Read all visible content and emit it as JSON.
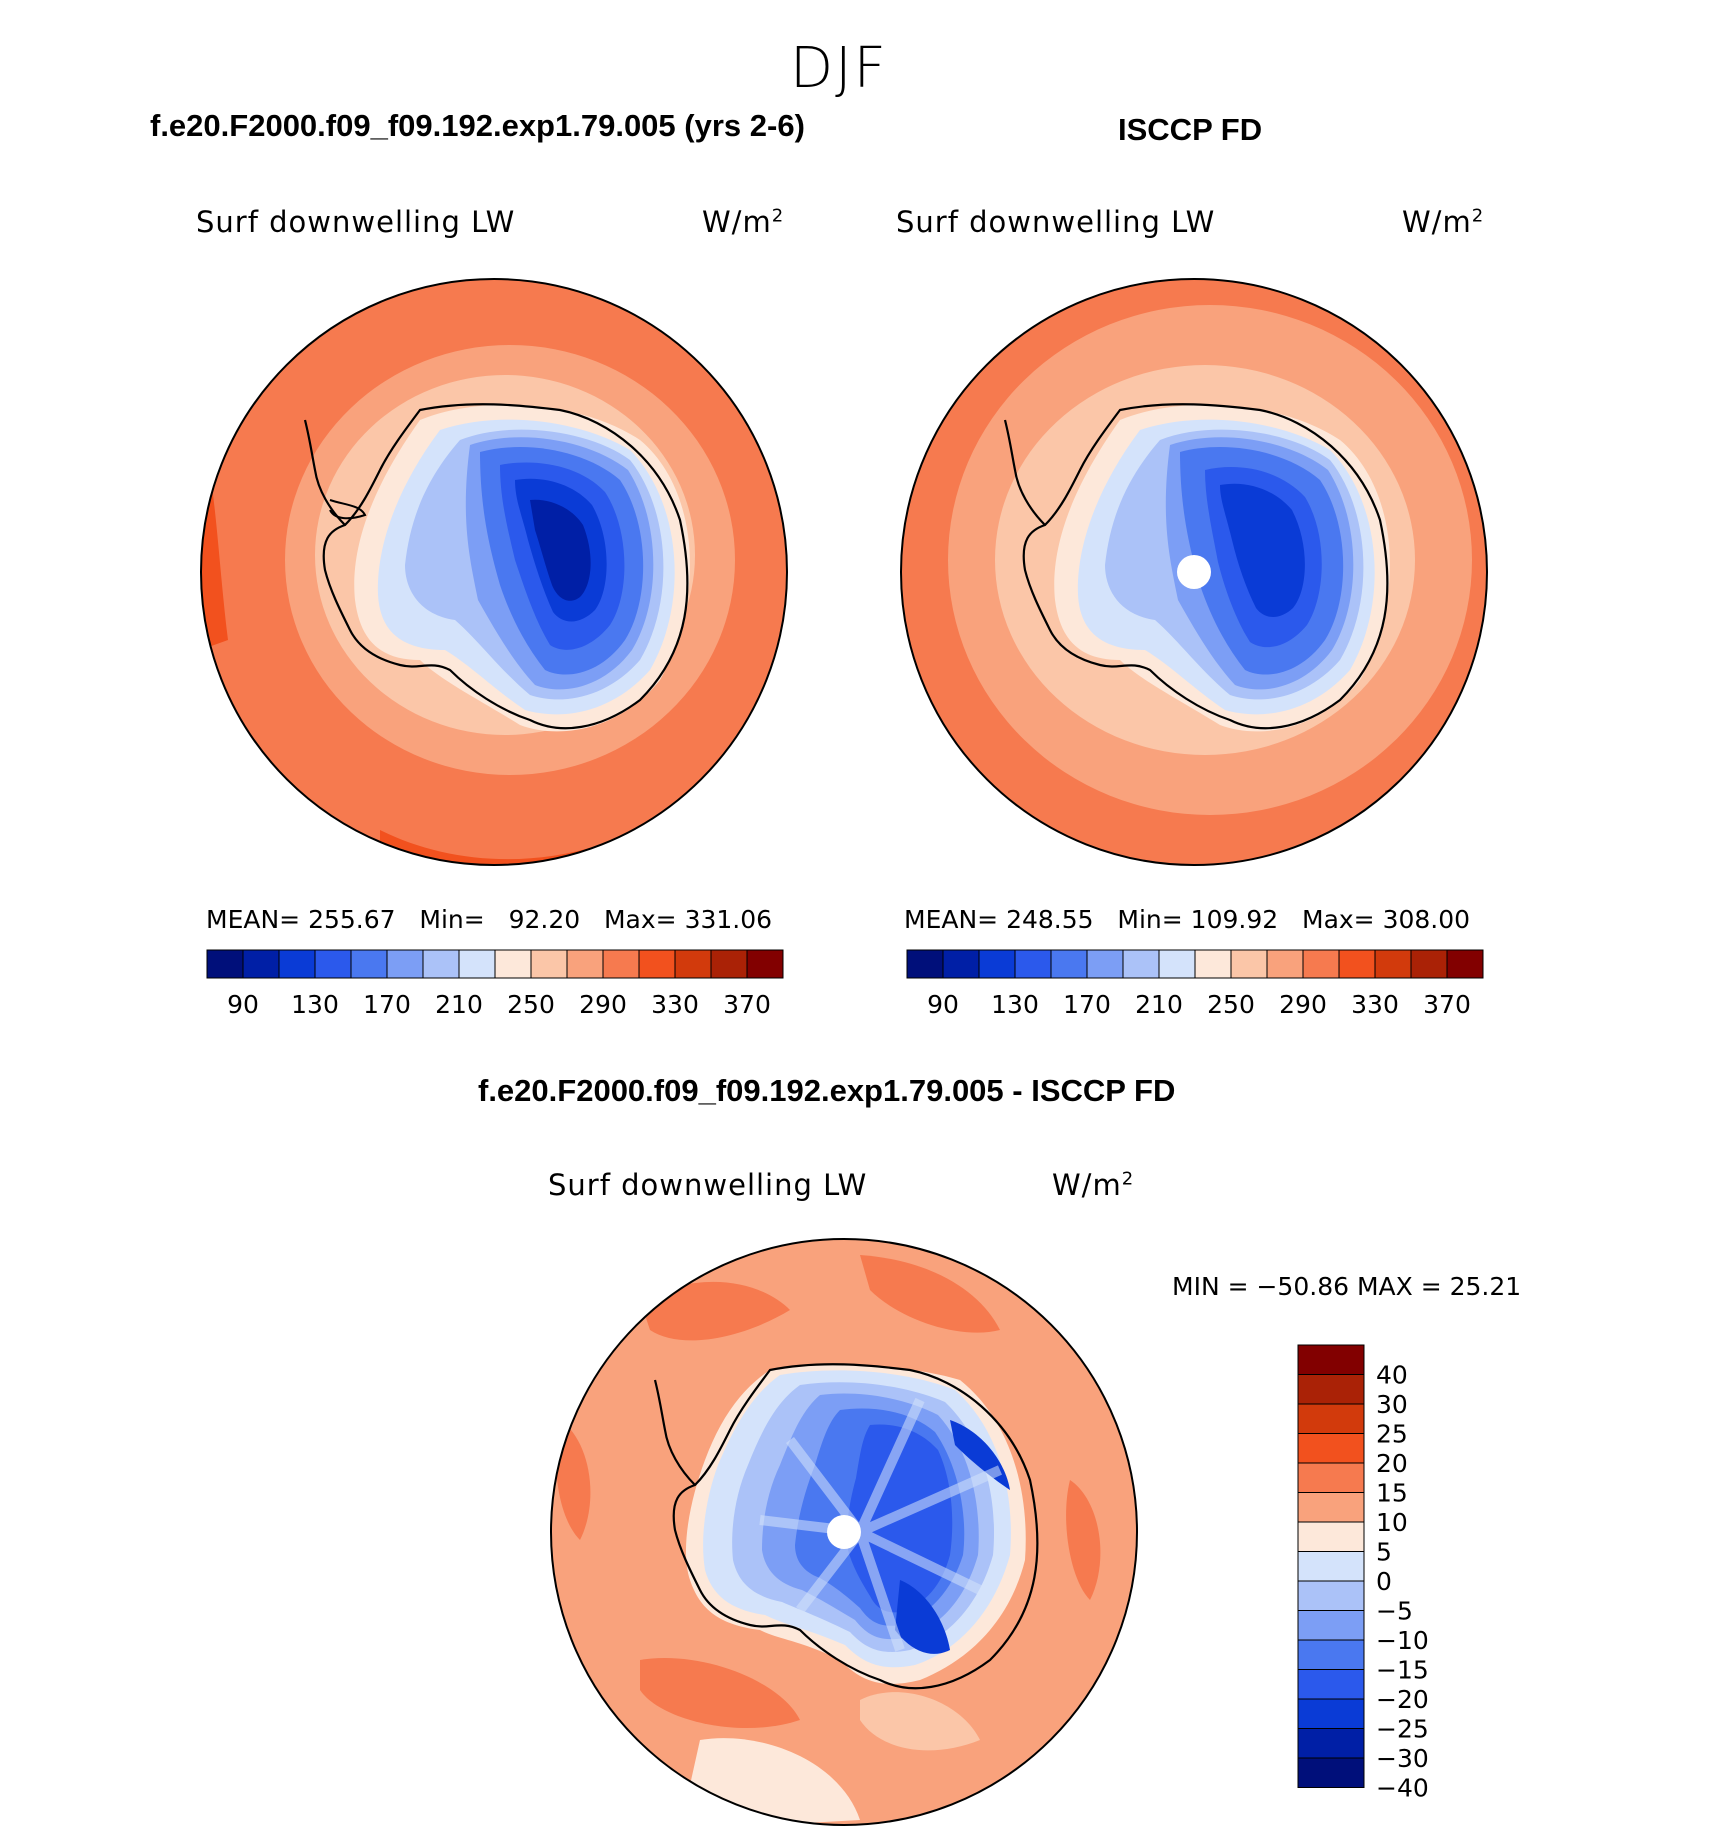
{
  "season_title": "DJF",
  "panels": [
    {
      "id": "model",
      "title": "f.e20.F2000.f09_f09.192.exp1.79.005 (yrs 2-6)",
      "variable": "Surf downwelling LW",
      "units": "W/m",
      "units_exp": "2",
      "stats": {
        "mean_label": "MEAN=",
        "mean": "255.67",
        "min_label": "Min=",
        "min": "92.20",
        "max_label": "Max=",
        "max": "331.06"
      }
    },
    {
      "id": "obs",
      "title": "ISCCP FD",
      "variable": "Surf downwelling LW",
      "units": "W/m",
      "units_exp": "2",
      "stats": {
        "mean_label": "MEAN=",
        "mean": "248.55",
        "min_label": "Min=",
        "min": "109.92",
        "max_label": "Max=",
        "max": "308.00"
      }
    }
  ],
  "diff_panel": {
    "title": "f.e20.F2000.f09_f09.192.exp1.79.005 - ISCCP FD",
    "variable": "Surf downwelling LW",
    "units": "W/m",
    "units_exp": "2",
    "minmax": "MIN = −50.86 MAX =   25.21"
  },
  "abs_colorbar": {
    "colors": [
      "#000f7a",
      "#001fa6",
      "#0a3bd6",
      "#2b59ec",
      "#4a78f0",
      "#7c9ef5",
      "#abc2f8",
      "#d4e3fb",
      "#fde8da",
      "#fbc6a8",
      "#f9a27c",
      "#f67a4f",
      "#f2511e",
      "#d23a0c",
      "#aa2206",
      "#820000"
    ],
    "tick_labels": [
      "90",
      "130",
      "170",
      "210",
      "250",
      "290",
      "330",
      "370"
    ]
  },
  "diff_colorbar": {
    "colors": [
      "#820000",
      "#aa2206",
      "#d23a0c",
      "#f2511e",
      "#f67a4f",
      "#f9a27c",
      "#fde8da",
      "#d4e3fb",
      "#abc2f8",
      "#7c9ef5",
      "#4a78f0",
      "#2b59ec",
      "#0a3bd6",
      "#001fa6",
      "#000f7a"
    ],
    "tick_labels": [
      "40",
      "30",
      "25",
      "20",
      "15",
      "10",
      "5",
      "0",
      "−5",
      "−10",
      "−15",
      "−20",
      "−25",
      "−30",
      "−40"
    ]
  }
}
